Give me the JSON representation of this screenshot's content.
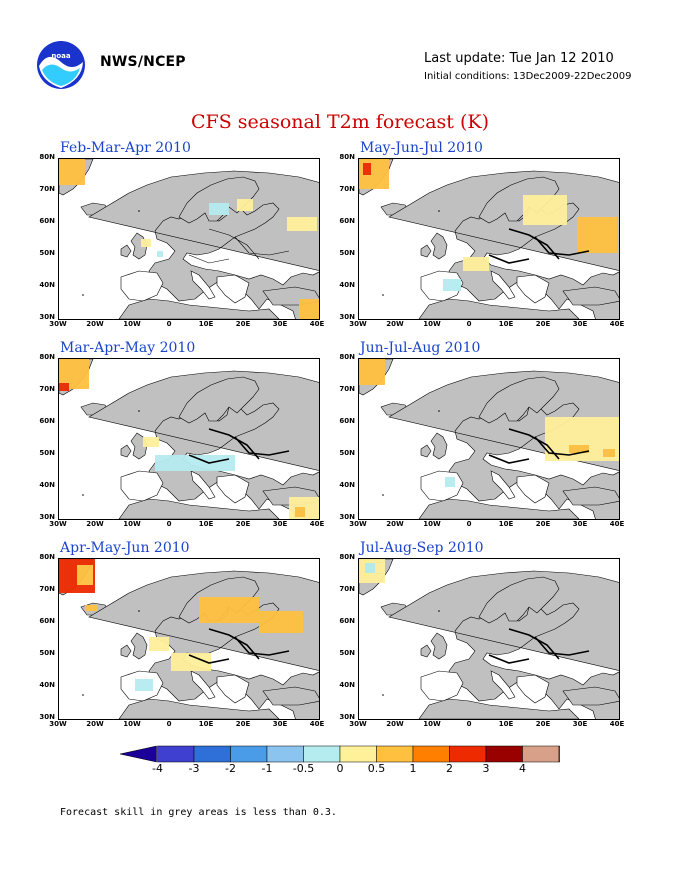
{
  "header": {
    "organization": "NWS/NCEP",
    "last_update": "Last update: Tue Jan 12 2010",
    "initial_conditions": "Initial conditions: 13Dec2009-22Dec2009",
    "logo_icon": "noaa-logo-icon"
  },
  "main_title": "CFS seasonal T2m forecast (K)",
  "axes": {
    "lat_labels": [
      "80N",
      "70N",
      "60N",
      "50N",
      "40N",
      "30N"
    ],
    "lon_labels": [
      "30W",
      "20W",
      "10W",
      "0",
      "10E",
      "20E",
      "30E",
      "40E"
    ]
  },
  "panels": [
    {
      "title": "Feb-Mar-Apr 2010"
    },
    {
      "title": "May-Jun-Jul 2010"
    },
    {
      "title": "Mar-Apr-May 2010"
    },
    {
      "title": "Jun-Jul-Aug 2010"
    },
    {
      "title": "Apr-May-Jun 2010"
    },
    {
      "title": "Jul-Aug-Sep 2010"
    }
  ],
  "colorbar": {
    "labels": [
      "-4",
      "-3",
      "-2",
      "-1",
      "-0.5",
      "0",
      "0.5",
      "1",
      "2",
      "3",
      "4"
    ],
    "colors": [
      "#1a0099",
      "#3f3fd0",
      "#2e6fd8",
      "#4a9be8",
      "#8cc4f0",
      "#b5ecf0",
      "#fff09a",
      "#ffc040",
      "#ff8000",
      "#ee2a00",
      "#990000",
      "#d9a089",
      "#7a4f3c"
    ],
    "grey_color": "#c0c0c0"
  },
  "footnote": "Forecast skill in grey areas is less than 0.3."
}
